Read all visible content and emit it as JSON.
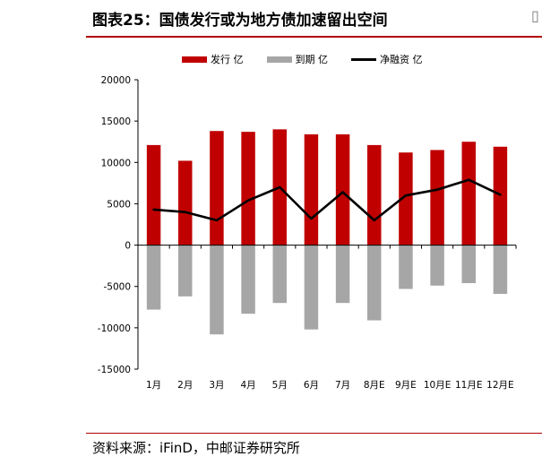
{
  "figure": {
    "title": "图表25：国债发行或为地方债加速留出空间",
    "source": "资料来源：iFinD，中邮证券研究所"
  },
  "colors": {
    "issuance": "#c00000",
    "maturity": "#a6a6a6",
    "net": "#000000",
    "accent_line": "#b00000"
  },
  "chart_data": {
    "type": "bar",
    "title": "",
    "xlabel": "",
    "ylabel": "",
    "categories": [
      "1月",
      "2月",
      "3月",
      "4月",
      "5月",
      "6月",
      "7月",
      "8月E",
      "9月E",
      "10月E",
      "11月E",
      "12月E"
    ],
    "series": [
      {
        "name": "发行 亿",
        "type": "bar",
        "values": [
          12100,
          10200,
          13800,
          13700,
          14000,
          13400,
          13400,
          12100,
          11200,
          11500,
          12500,
          11900
        ]
      },
      {
        "name": "到期 亿",
        "type": "bar",
        "values": [
          -7800,
          -6200,
          -10800,
          -8300,
          -7000,
          -10200,
          -7000,
          -9100,
          -5300,
          -4900,
          -4600,
          -5900
        ]
      },
      {
        "name": "净融资 亿",
        "type": "line",
        "values": [
          4300,
          4000,
          3000,
          5400,
          7000,
          3200,
          6400,
          3000,
          6000,
          6700,
          7900,
          6100
        ]
      }
    ],
    "ylim": [
      -15000,
      20000
    ],
    "yticks": [
      20000,
      15000,
      10000,
      5000,
      0,
      -5000,
      -10000,
      -15000
    ],
    "grid": false,
    "legend": "top"
  }
}
